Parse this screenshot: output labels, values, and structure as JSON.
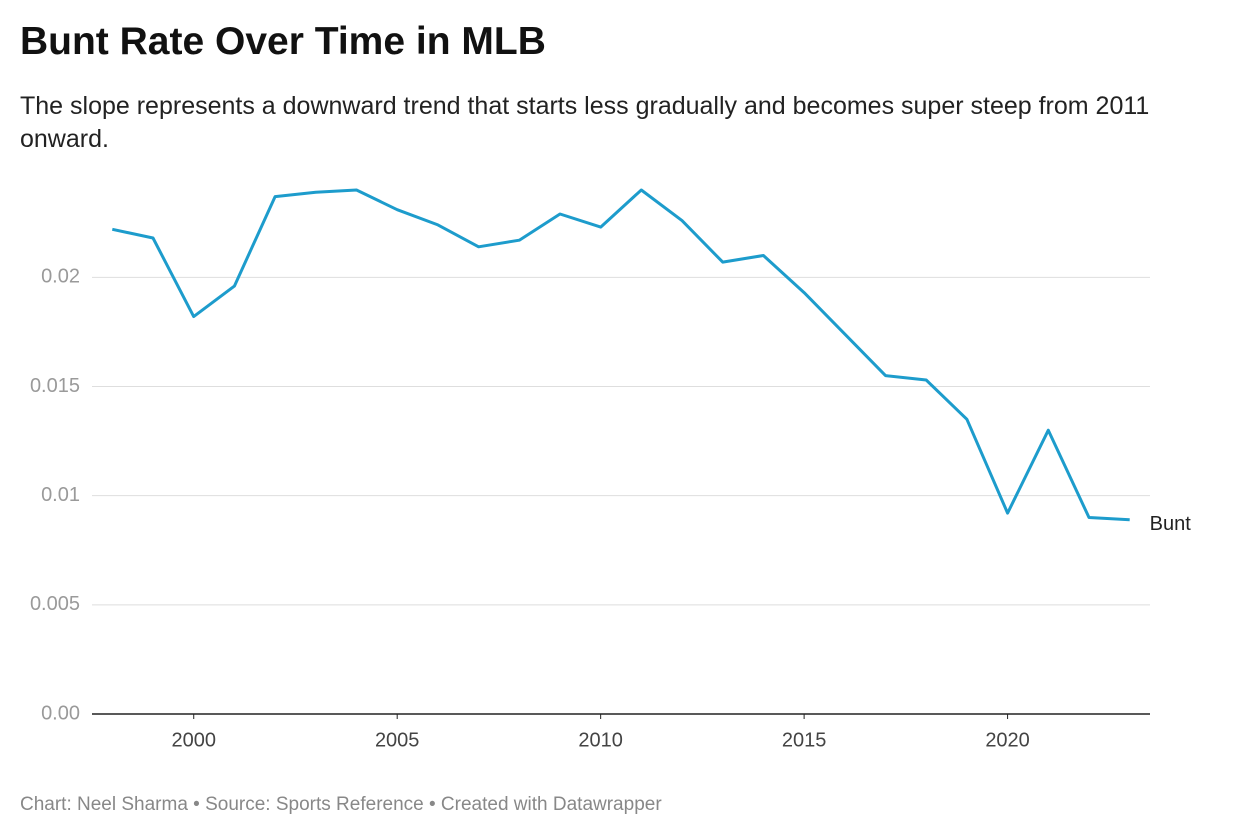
{
  "chart_data": {
    "type": "line",
    "title": "Bunt Rate Over Time in MLB",
    "subtitle": "The slope represents a downward trend that starts less gradually and becomes super steep from 2011 onward.",
    "source": "Chart: Neel Sharma • Source: Sports Reference • Created with Datawrapper",
    "x": [
      1998,
      1999,
      2000,
      2001,
      2002,
      2003,
      2004,
      2005,
      2006,
      2007,
      2008,
      2009,
      2010,
      2011,
      2012,
      2013,
      2014,
      2015,
      2016,
      2017,
      2018,
      2019,
      2020,
      2021,
      2022,
      2023
    ],
    "series": [
      {
        "name": "Bunt",
        "color": "#1d9ccc",
        "values": [
          0.0222,
          0.0218,
          0.0182,
          0.0196,
          0.0237,
          0.0239,
          0.024,
          0.0231,
          0.0224,
          0.0214,
          0.0217,
          0.0229,
          0.0223,
          0.024,
          0.0226,
          0.0207,
          0.021,
          0.0193,
          0.0174,
          0.0155,
          0.0153,
          0.0135,
          0.0092,
          0.013,
          0.009,
          0.0089
        ]
      }
    ],
    "xlim": [
      1997.5,
      2023.5
    ],
    "xticks": [
      2000,
      2005,
      2010,
      2015,
      2020
    ],
    "ylim": [
      0,
      0.024
    ],
    "yticks": [
      {
        "value": 0,
        "label": "0.00"
      },
      0.005,
      0.01,
      0.015,
      0.02
    ],
    "grid": true
  }
}
